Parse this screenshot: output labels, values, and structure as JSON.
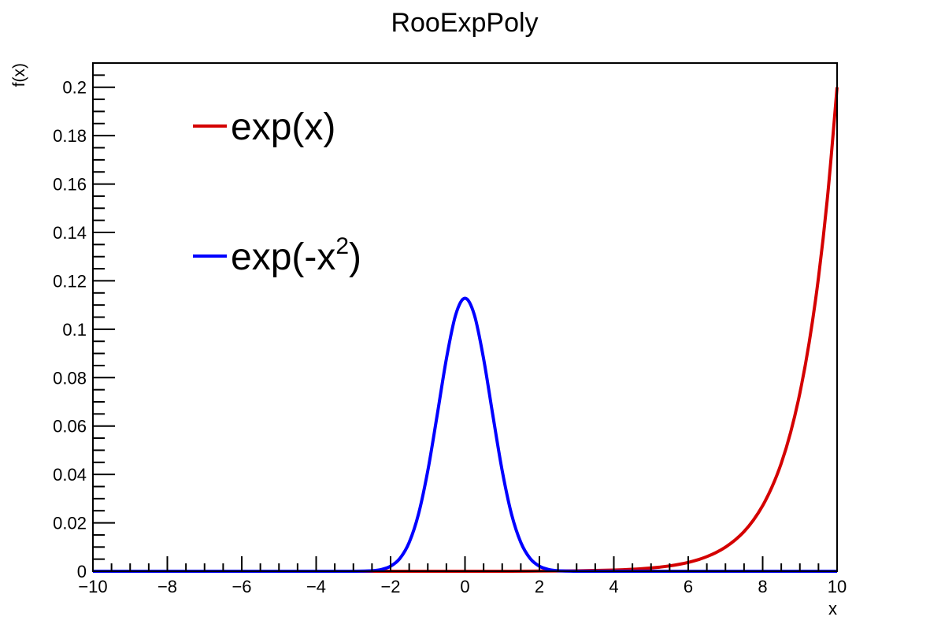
{
  "chart_data": {
    "type": "line",
    "title": "RooExpPoly",
    "xlabel": "x",
    "ylabel": "f(x)",
    "xlim": [
      -10,
      10
    ],
    "ylim": [
      0,
      0.21
    ],
    "xticks": [
      -10,
      -8,
      -6,
      -4,
      -2,
      0,
      2,
      4,
      6,
      8,
      10
    ],
    "xtick_labels": [
      "−10",
      "−8",
      "−6",
      "−4",
      "−2",
      "0",
      "2",
      "4",
      "6",
      "8",
      "10"
    ],
    "yticks": [
      0,
      0.02,
      0.04,
      0.06,
      0.08,
      0.1,
      0.12,
      0.14,
      0.16,
      0.18,
      0.2
    ],
    "ytick_labels": [
      "0",
      "0.02",
      "0.04",
      "0.06",
      "0.08",
      "0.1",
      "0.12",
      "0.14",
      "0.16",
      "0.18",
      "0.2"
    ],
    "grid": false,
    "legend_placement": "top-left",
    "series": [
      {
        "name": "exp(x)",
        "color": "#d40000",
        "x": [
          -10,
          0,
          2,
          3,
          4,
          4.5,
          5,
          5.25,
          5.5,
          5.75,
          6,
          6.25,
          6.5,
          6.75,
          7,
          7.25,
          7.5,
          7.75,
          8,
          8.25,
          8.5,
          8.75,
          9,
          9.25,
          9.5,
          9.75,
          10
        ],
        "y": [
          0,
          9e-06,
          6.7e-05,
          0.000182,
          0.000496,
          0.000817,
          0.00135,
          0.00173,
          0.00222,
          0.00285,
          0.00366,
          0.0047,
          0.00604,
          0.00775,
          0.00996,
          0.0128,
          0.0164,
          0.0211,
          0.0271,
          0.0348,
          0.0446,
          0.0573,
          0.0736,
          0.0945,
          0.1213,
          0.1558,
          0.2
        ]
      },
      {
        "name": "exp(-x²)",
        "color": "#0000ff",
        "x": [
          -10,
          -3.5,
          -3,
          -2.5,
          -2.25,
          -2,
          -1.75,
          -1.5,
          -1.25,
          -1,
          -0.75,
          -0.5,
          -0.25,
          0,
          0.25,
          0.5,
          0.75,
          1,
          1.25,
          1.5,
          1.75,
          2,
          2.25,
          2.5,
          3,
          3.5,
          10
        ],
        "y": [
          0,
          0,
          1.4e-05,
          0.000218,
          0.000714,
          0.00207,
          0.00528,
          0.0119,
          0.0236,
          0.0415,
          0.0643,
          0.0878,
          0.106,
          0.1128,
          0.106,
          0.0878,
          0.0643,
          0.0415,
          0.0236,
          0.0119,
          0.00528,
          0.00207,
          0.000714,
          0.000218,
          1.4e-05,
          0,
          0
        ]
      }
    ],
    "legend": [
      {
        "text": "exp(x)",
        "base": "exp(x)",
        "sup": "",
        "tail": "",
        "color": "#d40000"
      },
      {
        "text": "exp(-x²)",
        "base": "exp(-x",
        "sup": "2",
        "tail": ")",
        "color": "#0000ff"
      }
    ]
  }
}
